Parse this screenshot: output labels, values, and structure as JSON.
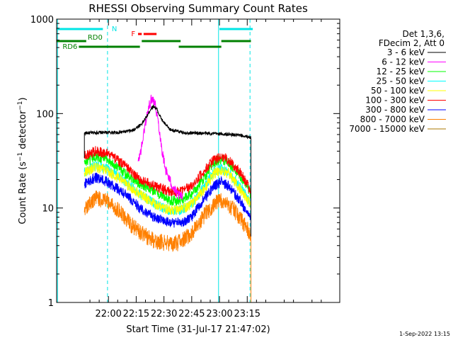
{
  "chart_data": {
    "type": "line",
    "title": "RHESSI Observing Summary Count Rates",
    "xlabel": "Start Time (31-Jul-17 21:47:02)",
    "ylabel_main": "Count Rate (s",
    "ylabel_sup1": "−1",
    "ylabel_mid": " detector",
    "ylabel_sup2": "−1",
    "ylabel_end": ")",
    "y_scale": "log",
    "ylim": [
      1,
      1000
    ],
    "y_ticks": [
      {
        "value": 1,
        "label": "1"
      },
      {
        "value": 10,
        "label": "10"
      },
      {
        "value": 100,
        "label": "100"
      },
      {
        "value": 1000,
        "label": "1000"
      }
    ],
    "xlim_min": [
      -13,
      140
    ],
    "x_ticks": [
      {
        "minute": 15,
        "label": "22:00"
      },
      {
        "minute": 30,
        "label": "22:15"
      },
      {
        "minute": 45,
        "label": "22:30"
      },
      {
        "minute": 60,
        "label": "22:45"
      },
      {
        "minute": 75,
        "label": "23:00"
      },
      {
        "minute": 90,
        "label": "23:15"
      }
    ],
    "legend_header": [
      "Det 1,3,6,",
      "FDecim 2, Att 0"
    ],
    "series": [
      {
        "name": "3 - 6 keV",
        "color": "#000000",
        "values": [
          [
            2,
            62
          ],
          [
            10,
            63
          ],
          [
            20,
            63
          ],
          [
            28,
            66
          ],
          [
            33,
            78
          ],
          [
            36,
            95
          ],
          [
            38,
            113
          ],
          [
            39.5,
            120
          ],
          [
            41,
            112
          ],
          [
            44,
            85
          ],
          [
            48,
            68
          ],
          [
            55,
            63
          ],
          [
            65,
            62
          ],
          [
            75,
            61
          ],
          [
            85,
            59
          ],
          [
            90,
            57
          ],
          [
            92,
            56
          ]
        ]
      },
      {
        "name": "6 - 12 keV",
        "color": "#ff00ff",
        "values": [
          [
            31,
            30
          ],
          [
            33,
            45
          ],
          [
            35,
            80
          ],
          [
            37,
            120
          ],
          [
            38.5,
            148
          ],
          [
            40,
            135
          ],
          [
            42,
            80
          ],
          [
            44,
            40
          ],
          [
            46,
            25
          ],
          [
            49,
            18
          ],
          [
            52,
            14
          ],
          [
            55,
            13
          ]
        ]
      },
      {
        "name": "12 - 25 keV",
        "color": "#00ff00",
        "values": [
          [
            2,
            30
          ],
          [
            8,
            35
          ],
          [
            14,
            33
          ],
          [
            20,
            27
          ],
          [
            26,
            22
          ],
          [
            32,
            18
          ],
          [
            40,
            15
          ],
          [
            48,
            12
          ],
          [
            54,
            12
          ],
          [
            60,
            14
          ],
          [
            66,
            20
          ],
          [
            72,
            30
          ],
          [
            76,
            33
          ],
          [
            80,
            30
          ],
          [
            86,
            22
          ],
          [
            90,
            17
          ],
          [
            92,
            14
          ]
        ]
      },
      {
        "name": "25 - 50 keV",
        "color": "#00ffff",
        "values": [
          [
            2,
            24
          ],
          [
            8,
            28
          ],
          [
            14,
            26
          ],
          [
            20,
            22
          ],
          [
            26,
            18
          ],
          [
            32,
            14
          ],
          [
            40,
            11
          ],
          [
            48,
            9.5
          ],
          [
            54,
            9.5
          ],
          [
            60,
            11
          ],
          [
            66,
            16
          ],
          [
            72,
            24
          ],
          [
            76,
            26
          ],
          [
            80,
            24
          ],
          [
            86,
            17
          ],
          [
            90,
            13
          ],
          [
            92,
            11
          ]
        ]
      },
      {
        "name": "50 - 100 keV",
        "color": "#ffff00",
        "values": [
          [
            2,
            24
          ],
          [
            8,
            27
          ],
          [
            14,
            25
          ],
          [
            20,
            21
          ],
          [
            26,
            17
          ],
          [
            32,
            14
          ],
          [
            40,
            11
          ],
          [
            48,
            9.5
          ],
          [
            54,
            9.5
          ],
          [
            60,
            11
          ],
          [
            66,
            15
          ],
          [
            72,
            23
          ],
          [
            76,
            25
          ],
          [
            80,
            23
          ],
          [
            86,
            16
          ],
          [
            90,
            12
          ],
          [
            92,
            11
          ]
        ]
      },
      {
        "name": "100 - 300 keV",
        "color": "#ff0000",
        "values": [
          [
            2,
            36
          ],
          [
            8,
            40
          ],
          [
            14,
            38
          ],
          [
            20,
            32
          ],
          [
            26,
            26
          ],
          [
            32,
            20
          ],
          [
            40,
            17
          ],
          [
            48,
            15
          ],
          [
            54,
            15
          ],
          [
            60,
            17
          ],
          [
            66,
            24
          ],
          [
            72,
            32
          ],
          [
            76,
            35
          ],
          [
            80,
            32
          ],
          [
            86,
            24
          ],
          [
            90,
            18
          ],
          [
            92,
            15
          ]
        ]
      },
      {
        "name": "300 - 800 keV",
        "color": "#0000ff",
        "values": [
          [
            2,
            18
          ],
          [
            8,
            21
          ],
          [
            14,
            19
          ],
          [
            20,
            16
          ],
          [
            26,
            13
          ],
          [
            32,
            10
          ],
          [
            40,
            8
          ],
          [
            48,
            7
          ],
          [
            54,
            7
          ],
          [
            60,
            8
          ],
          [
            66,
            12
          ],
          [
            72,
            17
          ],
          [
            76,
            19
          ],
          [
            80,
            17
          ],
          [
            86,
            12
          ],
          [
            90,
            9
          ],
          [
            92,
            8
          ]
        ]
      },
      {
        "name": "800 - 7000 keV",
        "color": "#ff8000",
        "values": [
          [
            2,
            10
          ],
          [
            8,
            12.5
          ],
          [
            14,
            12
          ],
          [
            20,
            9.5
          ],
          [
            26,
            7
          ],
          [
            32,
            5.5
          ],
          [
            40,
            4.5
          ],
          [
            48,
            4.2
          ],
          [
            54,
            4.3
          ],
          [
            60,
            5.5
          ],
          [
            66,
            8
          ],
          [
            72,
            11
          ],
          [
            76,
            12
          ],
          [
            80,
            11
          ],
          [
            86,
            8
          ],
          [
            90,
            6
          ],
          [
            92,
            5
          ]
        ]
      },
      {
        "name": "7000 - 15000 keV",
        "color": "#aa7700",
        "values": []
      }
    ],
    "attenuator_bars": [
      {
        "label": "N",
        "color": "#00e5e5",
        "segments": [
          [
            -13,
            12
          ],
          [
            75,
            93
          ]
        ]
      },
      {
        "label": "F",
        "color": "#ff0000",
        "segments": [
          [
            31,
            33
          ],
          [
            34,
            41
          ]
        ]
      },
      {
        "label": "RD0",
        "color": "#008000",
        "segments": [
          [
            -13,
            3
          ],
          [
            33,
            54
          ],
          [
            76,
            92
          ]
        ]
      },
      {
        "label": "RD6",
        "color": "#008000",
        "segments": [
          [
            -1,
            32
          ],
          [
            53,
            76
          ]
        ]
      }
    ],
    "vlines_solid_min": [
      -12.5,
      74.5
    ],
    "vlines_dashed_min": [
      14.5,
      91.5
    ]
  },
  "footer": {
    "date": "1-Sep-2022 13:15"
  }
}
